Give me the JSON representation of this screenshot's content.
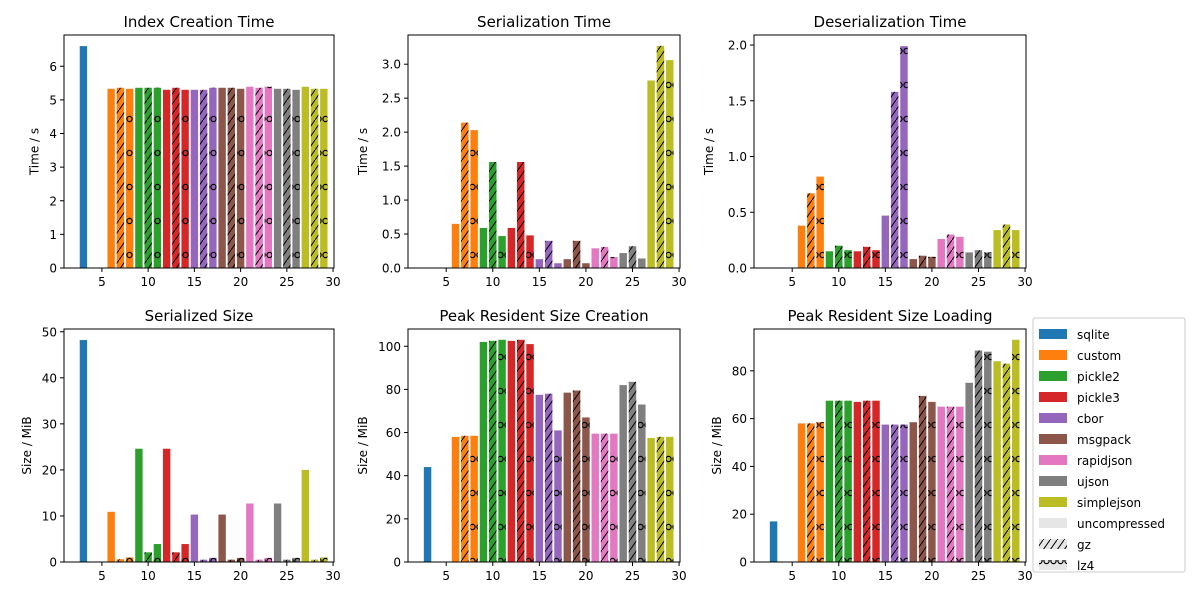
{
  "chart_data": [
    {
      "type": "bar",
      "title": "Index Creation Time",
      "ylabel": "Time / s",
      "xlim": [
        0.9,
        30.1
      ],
      "ylim": [
        0,
        6.93
      ],
      "xticks": [
        5,
        10,
        15,
        20,
        25,
        30
      ],
      "yticks": [
        0,
        1,
        2,
        3,
        4,
        5,
        6
      ],
      "x": [
        3,
        6,
        7,
        8,
        9,
        10,
        11,
        12,
        13,
        14,
        15,
        16,
        17,
        18,
        19,
        20,
        21,
        22,
        23,
        24,
        25,
        26,
        27,
        28,
        29
      ],
      "values": [
        6.6,
        5.33,
        5.36,
        5.33,
        5.36,
        5.36,
        5.36,
        5.3,
        5.36,
        5.3,
        5.3,
        5.3,
        5.36,
        5.36,
        5.36,
        5.33,
        5.39,
        5.36,
        5.39,
        5.33,
        5.33,
        5.3,
        5.39,
        5.33,
        5.33
      ],
      "series": [
        "sqlite",
        "custom",
        "custom",
        "custom",
        "pickle2",
        "pickle2",
        "pickle2",
        "pickle3",
        "pickle3",
        "pickle3",
        "cbor",
        "cbor",
        "cbor",
        "msgpack",
        "msgpack",
        "msgpack",
        "rapidjson",
        "rapidjson",
        "rapidjson",
        "ujson",
        "ujson",
        "ujson",
        "simplejson",
        "simplejson",
        "simplejson"
      ],
      "compression": [
        "uncompressed",
        "uncompressed",
        "gz",
        "lz4",
        "uncompressed",
        "gz",
        "lz4",
        "uncompressed",
        "gz",
        "lz4",
        "uncompressed",
        "gz",
        "lz4",
        "uncompressed",
        "gz",
        "lz4",
        "uncompressed",
        "gz",
        "lz4",
        "uncompressed",
        "gz",
        "lz4",
        "uncompressed",
        "gz",
        "lz4"
      ]
    },
    {
      "type": "bar",
      "title": "Serialization Time",
      "ylabel": "Time / s",
      "xlim": [
        0.9,
        30.1
      ],
      "ylim": [
        0,
        3.43
      ],
      "xticks": [
        5,
        10,
        15,
        20,
        25,
        30
      ],
      "yticks": [
        0.0,
        0.5,
        1.0,
        1.5,
        2.0,
        2.5,
        3.0
      ],
      "tick_format": 1,
      "x": [
        3,
        6,
        7,
        8,
        9,
        10,
        11,
        12,
        13,
        14,
        15,
        16,
        17,
        18,
        19,
        20,
        21,
        22,
        23,
        24,
        25,
        26,
        27,
        28,
        29
      ],
      "values": [
        0,
        0.65,
        2.14,
        2.03,
        0.59,
        1.56,
        0.47,
        0.59,
        1.56,
        0.48,
        0.13,
        0.4,
        0.07,
        0.13,
        0.4,
        0.07,
        0.29,
        0.31,
        0.16,
        0.22,
        0.32,
        0.14,
        2.76,
        3.27,
        3.06
      ],
      "series": [
        "sqlite",
        "custom",
        "custom",
        "custom",
        "pickle2",
        "pickle2",
        "pickle2",
        "pickle3",
        "pickle3",
        "pickle3",
        "cbor",
        "cbor",
        "cbor",
        "msgpack",
        "msgpack",
        "msgpack",
        "rapidjson",
        "rapidjson",
        "rapidjson",
        "ujson",
        "ujson",
        "ujson",
        "simplejson",
        "simplejson",
        "simplejson"
      ],
      "compression": [
        "uncompressed",
        "uncompressed",
        "gz",
        "lz4",
        "uncompressed",
        "gz",
        "lz4",
        "uncompressed",
        "gz",
        "lz4",
        "uncompressed",
        "gz",
        "lz4",
        "uncompressed",
        "gz",
        "lz4",
        "uncompressed",
        "gz",
        "lz4",
        "uncompressed",
        "gz",
        "lz4",
        "uncompressed",
        "gz",
        "lz4"
      ]
    },
    {
      "type": "bar",
      "title": "Deserialization Time",
      "ylabel": "Time / s",
      "xlim": [
        0.9,
        30.1
      ],
      "ylim": [
        0,
        2.09
      ],
      "xticks": [
        5,
        10,
        15,
        20,
        25,
        30
      ],
      "yticks": [
        0.0,
        0.5,
        1.0,
        1.5,
        2.0
      ],
      "tick_format": 1,
      "x": [
        3,
        6,
        7,
        8,
        9,
        10,
        11,
        12,
        13,
        14,
        15,
        16,
        17,
        18,
        19,
        20,
        21,
        22,
        23,
        24,
        25,
        26,
        27,
        28,
        29
      ],
      "values": [
        0,
        0.38,
        0.67,
        0.82,
        0.15,
        0.2,
        0.16,
        0.15,
        0.19,
        0.16,
        0.47,
        1.58,
        1.99,
        0.08,
        0.11,
        0.1,
        0.26,
        0.3,
        0.28,
        0.14,
        0.16,
        0.14,
        0.34,
        0.39,
        0.34
      ],
      "series": [
        "sqlite",
        "custom",
        "custom",
        "custom",
        "pickle2",
        "pickle2",
        "pickle2",
        "pickle3",
        "pickle3",
        "pickle3",
        "cbor",
        "cbor",
        "cbor",
        "msgpack",
        "msgpack",
        "msgpack",
        "rapidjson",
        "rapidjson",
        "rapidjson",
        "ujson",
        "ujson",
        "ujson",
        "simplejson",
        "simplejson",
        "simplejson"
      ],
      "compression": [
        "uncompressed",
        "uncompressed",
        "gz",
        "lz4",
        "uncompressed",
        "gz",
        "lz4",
        "uncompressed",
        "gz",
        "lz4",
        "uncompressed",
        "gz",
        "lz4",
        "uncompressed",
        "gz",
        "lz4",
        "uncompressed",
        "gz",
        "lz4",
        "uncompressed",
        "gz",
        "lz4",
        "uncompressed",
        "gz",
        "lz4"
      ]
    },
    {
      "type": "bar",
      "title": "Serialized Size",
      "ylabel": "Size / MiB",
      "xlim": [
        0.9,
        30.1
      ],
      "ylim": [
        0,
        50.6
      ],
      "xticks": [
        5,
        10,
        15,
        20,
        25,
        30
      ],
      "yticks": [
        0,
        10,
        20,
        30,
        40,
        50
      ],
      "x": [
        3,
        6,
        7,
        8,
        9,
        10,
        11,
        12,
        13,
        14,
        15,
        16,
        17,
        18,
        19,
        20,
        21,
        22,
        23,
        24,
        25,
        26,
        27,
        28,
        29
      ],
      "values": [
        48.2,
        10.9,
        0.6,
        1.0,
        24.6,
        2.1,
        3.9,
        24.6,
        2.1,
        3.9,
        10.3,
        0.5,
        0.9,
        10.3,
        0.5,
        0.9,
        12.7,
        0.5,
        0.9,
        12.7,
        0.5,
        0.9,
        20.0,
        0.5,
        1.0
      ],
      "series": [
        "sqlite",
        "custom",
        "custom",
        "custom",
        "pickle2",
        "pickle2",
        "pickle2",
        "pickle3",
        "pickle3",
        "pickle3",
        "cbor",
        "cbor",
        "cbor",
        "msgpack",
        "msgpack",
        "msgpack",
        "rapidjson",
        "rapidjson",
        "rapidjson",
        "ujson",
        "ujson",
        "ujson",
        "simplejson",
        "simplejson",
        "simplejson"
      ],
      "compression": [
        "uncompressed",
        "uncompressed",
        "gz",
        "lz4",
        "uncompressed",
        "gz",
        "lz4",
        "uncompressed",
        "gz",
        "lz4",
        "uncompressed",
        "gz",
        "lz4",
        "uncompressed",
        "gz",
        "lz4",
        "uncompressed",
        "gz",
        "lz4",
        "uncompressed",
        "gz",
        "lz4",
        "uncompressed",
        "gz",
        "lz4"
      ]
    },
    {
      "type": "bar",
      "title": "Peak Resident Size Creation",
      "ylabel": "Size / MiB",
      "xlim": [
        0.9,
        30.1
      ],
      "ylim": [
        0,
        108
      ],
      "xticks": [
        5,
        10,
        15,
        20,
        25,
        30
      ],
      "yticks": [
        0,
        20,
        40,
        60,
        80,
        100
      ],
      "x": [
        3,
        6,
        7,
        8,
        9,
        10,
        11,
        12,
        13,
        14,
        15,
        16,
        17,
        18,
        19,
        20,
        21,
        22,
        23,
        24,
        25,
        26,
        27,
        28,
        29
      ],
      "values": [
        44,
        58,
        58.5,
        58.5,
        102,
        102.5,
        103,
        102.5,
        103,
        101,
        77.5,
        78,
        61,
        78.5,
        79.5,
        67,
        59.5,
        59.5,
        59.5,
        82,
        83.5,
        73,
        57.5,
        58,
        58
      ],
      "series": [
        "sqlite",
        "custom",
        "custom",
        "custom",
        "pickle2",
        "pickle2",
        "pickle2",
        "pickle3",
        "pickle3",
        "pickle3",
        "cbor",
        "cbor",
        "cbor",
        "msgpack",
        "msgpack",
        "msgpack",
        "rapidjson",
        "rapidjson",
        "rapidjson",
        "ujson",
        "ujson",
        "ujson",
        "simplejson",
        "simplejson",
        "simplejson"
      ],
      "compression": [
        "uncompressed",
        "uncompressed",
        "gz",
        "lz4",
        "uncompressed",
        "gz",
        "lz4",
        "uncompressed",
        "gz",
        "lz4",
        "uncompressed",
        "gz",
        "lz4",
        "uncompressed",
        "gz",
        "lz4",
        "uncompressed",
        "gz",
        "lz4",
        "uncompressed",
        "gz",
        "lz4",
        "uncompressed",
        "gz",
        "lz4"
      ]
    },
    {
      "type": "bar",
      "title": "Peak Resident Size Loading",
      "ylabel": "Size / MiB",
      "xlim": [
        0.9,
        30.1
      ],
      "ylim": [
        0,
        97.5
      ],
      "xticks": [
        5,
        10,
        15,
        20,
        25,
        30
      ],
      "yticks": [
        0,
        20,
        40,
        60,
        80
      ],
      "x": [
        3,
        6,
        7,
        8,
        9,
        10,
        11,
        12,
        13,
        14,
        15,
        16,
        17,
        18,
        19,
        20,
        21,
        22,
        23,
        24,
        25,
        26,
        27,
        28,
        29
      ],
      "values": [
        17,
        58,
        58,
        58.5,
        67.5,
        67.5,
        67.5,
        67,
        67.5,
        67.5,
        57.5,
        57.5,
        57.5,
        58.5,
        69.5,
        67,
        65,
        65,
        65,
        75,
        88.5,
        88,
        84,
        83,
        93
      ],
      "series": [
        "sqlite",
        "custom",
        "custom",
        "custom",
        "pickle2",
        "pickle2",
        "pickle2",
        "pickle3",
        "pickle3",
        "pickle3",
        "cbor",
        "cbor",
        "cbor",
        "msgpack",
        "msgpack",
        "msgpack",
        "rapidjson",
        "rapidjson",
        "rapidjson",
        "ujson",
        "ujson",
        "ujson",
        "simplejson",
        "simplejson",
        "simplejson"
      ],
      "compression": [
        "uncompressed",
        "uncompressed",
        "gz",
        "lz4",
        "uncompressed",
        "gz",
        "lz4",
        "uncompressed",
        "gz",
        "lz4",
        "uncompressed",
        "gz",
        "lz4",
        "uncompressed",
        "gz",
        "lz4",
        "uncompressed",
        "gz",
        "lz4",
        "uncompressed",
        "gz",
        "lz4",
        "uncompressed",
        "gz",
        "lz4"
      ]
    }
  ],
  "colors": {
    "sqlite": "#1f77b4",
    "custom": "#ff7f0e",
    "pickle2": "#2ca02c",
    "pickle3": "#d62728",
    "cbor": "#9467bd",
    "msgpack": "#8c564b",
    "rapidjson": "#e377c2",
    "ujson": "#7f7f7f",
    "simplejson": "#bcbd22",
    "neutral": "#e6e6e6"
  },
  "legend": {
    "placement": "right",
    "series": [
      "sqlite",
      "custom",
      "pickle2",
      "pickle3",
      "cbor",
      "msgpack",
      "rapidjson",
      "ujson",
      "simplejson"
    ],
    "compression": [
      "uncompressed",
      "gz",
      "lz4"
    ]
  }
}
